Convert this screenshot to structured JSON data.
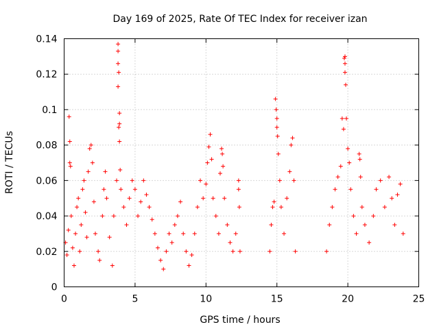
{
  "chart_data": {
    "type": "scatter",
    "title": "Day 169 of 2025, Rate Of TEC Index for receiver izan",
    "xlabel": "GPS time / hours",
    "ylabel": "ROTI / TECUs",
    "xlim": [
      0,
      25
    ],
    "ylim": [
      0,
      0.14
    ],
    "x_ticks": [
      "0",
      "5",
      "10",
      "15",
      "20",
      "25"
    ],
    "y_ticks": [
      "0",
      "0.02",
      "0.04",
      "0.06",
      "0.08",
      "0.1",
      "0.12",
      "0.14"
    ],
    "grid": true,
    "marker": "+",
    "color": "#ff0000",
    "series": [
      {
        "points": [
          [
            0.1,
            0.025
          ],
          [
            0.2,
            0.018
          ],
          [
            0.3,
            0.032
          ],
          [
            0.35,
            0.096
          ],
          [
            0.4,
            0.082
          ],
          [
            0.4,
            0.07
          ],
          [
            0.45,
            0.068
          ],
          [
            0.5,
            0.04
          ],
          [
            0.6,
            0.022
          ],
          [
            0.7,
            0.012
          ],
          [
            0.8,
            0.03
          ],
          [
            0.9,
            0.045
          ],
          [
            1.0,
            0.05
          ],
          [
            1.1,
            0.02
          ],
          [
            1.2,
            0.035
          ],
          [
            1.3,
            0.055
          ],
          [
            1.4,
            0.06
          ],
          [
            1.5,
            0.042
          ],
          [
            1.6,
            0.028
          ],
          [
            1.7,
            0.065
          ],
          [
            1.8,
            0.078
          ],
          [
            1.9,
            0.08
          ],
          [
            2.0,
            0.07
          ],
          [
            2.1,
            0.048
          ],
          [
            2.2,
            0.03
          ],
          [
            2.4,
            0.02
          ],
          [
            2.5,
            0.015
          ],
          [
            2.7,
            0.04
          ],
          [
            2.8,
            0.055
          ],
          [
            2.9,
            0.065
          ],
          [
            3.0,
            0.05
          ],
          [
            3.2,
            0.028
          ],
          [
            3.4,
            0.012
          ],
          [
            3.5,
            0.04
          ],
          [
            3.7,
            0.06
          ],
          [
            3.8,
            0.137
          ],
          [
            3.8,
            0.133
          ],
          [
            3.8,
            0.126
          ],
          [
            3.85,
            0.121
          ],
          [
            3.8,
            0.113
          ],
          [
            3.9,
            0.098
          ],
          [
            3.9,
            0.092
          ],
          [
            3.85,
            0.09
          ],
          [
            3.9,
            0.082
          ],
          [
            3.95,
            0.066
          ],
          [
            4.0,
            0.055
          ],
          [
            4.2,
            0.045
          ],
          [
            4.4,
            0.035
          ],
          [
            4.6,
            0.05
          ],
          [
            4.8,
            0.06
          ],
          [
            5.0,
            0.055
          ],
          [
            5.2,
            0.04
          ],
          [
            5.4,
            0.048
          ],
          [
            5.6,
            0.06
          ],
          [
            5.8,
            0.052
          ],
          [
            6.0,
            0.045
          ],
          [
            6.2,
            0.038
          ],
          [
            6.4,
            0.03
          ],
          [
            6.6,
            0.022
          ],
          [
            6.8,
            0.015
          ],
          [
            7.0,
            0.01
          ],
          [
            7.2,
            0.02
          ],
          [
            7.4,
            0.03
          ],
          [
            7.6,
            0.025
          ],
          [
            7.8,
            0.035
          ],
          [
            8.0,
            0.04
          ],
          [
            8.2,
            0.048
          ],
          [
            8.4,
            0.03
          ],
          [
            8.6,
            0.02
          ],
          [
            8.8,
            0.012
          ],
          [
            9.0,
            0.018
          ],
          [
            9.2,
            0.03
          ],
          [
            9.4,
            0.045
          ],
          [
            9.6,
            0.06
          ],
          [
            9.8,
            0.05
          ],
          [
            10.0,
            0.058
          ],
          [
            10.1,
            0.07
          ],
          [
            10.2,
            0.079
          ],
          [
            10.3,
            0.086
          ],
          [
            10.4,
            0.072
          ],
          [
            10.5,
            0.05
          ],
          [
            10.7,
            0.04
          ],
          [
            10.9,
            0.03
          ],
          [
            11.0,
            0.064
          ],
          [
            11.1,
            0.078
          ],
          [
            11.15,
            0.075
          ],
          [
            11.2,
            0.068
          ],
          [
            11.3,
            0.05
          ],
          [
            11.5,
            0.035
          ],
          [
            11.7,
            0.025
          ],
          [
            11.9,
            0.02
          ],
          [
            12.1,
            0.03
          ],
          [
            12.3,
            0.06
          ],
          [
            12.3,
            0.055
          ],
          [
            12.35,
            0.045
          ],
          [
            12.4,
            0.02
          ],
          [
            14.5,
            0.02
          ],
          [
            14.6,
            0.035
          ],
          [
            14.7,
            0.045
          ],
          [
            14.8,
            0.048
          ],
          [
            14.9,
            0.106
          ],
          [
            14.95,
            0.1
          ],
          [
            15.0,
            0.095
          ],
          [
            15.0,
            0.09
          ],
          [
            15.05,
            0.085
          ],
          [
            15.1,
            0.075
          ],
          [
            15.2,
            0.06
          ],
          [
            15.3,
            0.045
          ],
          [
            15.5,
            0.03
          ],
          [
            15.7,
            0.05
          ],
          [
            15.9,
            0.065
          ],
          [
            16.0,
            0.08
          ],
          [
            16.1,
            0.084
          ],
          [
            16.2,
            0.06
          ],
          [
            16.3,
            0.02
          ],
          [
            18.5,
            0.02
          ],
          [
            18.7,
            0.035
          ],
          [
            18.9,
            0.045
          ],
          [
            19.1,
            0.055
          ],
          [
            19.3,
            0.062
          ],
          [
            19.5,
            0.068
          ],
          [
            19.6,
            0.095
          ],
          [
            19.7,
            0.089
          ],
          [
            19.75,
            0.129
          ],
          [
            19.8,
            0.13
          ],
          [
            19.8,
            0.126
          ],
          [
            19.8,
            0.121
          ],
          [
            19.85,
            0.114
          ],
          [
            19.9,
            0.095
          ],
          [
            20.0,
            0.078
          ],
          [
            20.1,
            0.07
          ],
          [
            20.2,
            0.055
          ],
          [
            20.4,
            0.04
          ],
          [
            20.6,
            0.03
          ],
          [
            20.8,
            0.075
          ],
          [
            20.85,
            0.072
          ],
          [
            20.9,
            0.062
          ],
          [
            21.0,
            0.045
          ],
          [
            21.2,
            0.035
          ],
          [
            21.5,
            0.025
          ],
          [
            21.8,
            0.04
          ],
          [
            22.0,
            0.055
          ],
          [
            22.3,
            0.06
          ],
          [
            22.6,
            0.045
          ],
          [
            22.9,
            0.062
          ],
          [
            23.1,
            0.05
          ],
          [
            23.3,
            0.035
          ],
          [
            23.5,
            0.052
          ],
          [
            23.7,
            0.058
          ],
          [
            23.9,
            0.03
          ]
        ]
      }
    ]
  }
}
